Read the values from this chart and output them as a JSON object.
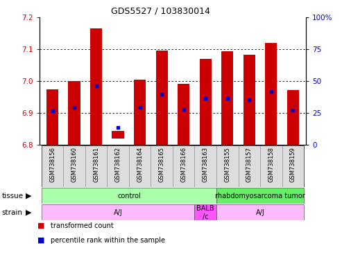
{
  "title": "GDS5527 / 103830014",
  "samples": [
    "GSM738156",
    "GSM738160",
    "GSM738161",
    "GSM738162",
    "GSM738164",
    "GSM738165",
    "GSM738166",
    "GSM738163",
    "GSM738155",
    "GSM738157",
    "GSM738158",
    "GSM738159"
  ],
  "bar_bottom": [
    6.8,
    6.8,
    6.8,
    6.82,
    6.8,
    6.8,
    6.8,
    6.8,
    6.8,
    6.8,
    6.8,
    6.8
  ],
  "bar_top": [
    6.975,
    7.0,
    7.165,
    6.845,
    7.005,
    7.095,
    6.992,
    7.07,
    7.093,
    7.082,
    7.12,
    6.972
  ],
  "blue_dot_y": [
    6.907,
    6.918,
    6.986,
    6.855,
    6.918,
    6.958,
    6.912,
    6.946,
    6.946,
    6.942,
    6.967,
    6.91
  ],
  "ylim_left": [
    6.8,
    7.2
  ],
  "ylim_right": [
    0,
    100
  ],
  "yticks_left": [
    6.8,
    6.9,
    7.0,
    7.1,
    7.2
  ],
  "yticks_right": [
    0,
    25,
    50,
    75,
    100
  ],
  "bar_color": "#cc0000",
  "dot_color": "#0000cc",
  "tissue_groups": [
    {
      "label": "control",
      "start": 0,
      "end": 8,
      "color": "#aaffaa"
    },
    {
      "label": "rhabdomyosarcoma tumor",
      "start": 8,
      "end": 12,
      "color": "#66ee66"
    }
  ],
  "strain_groups": [
    {
      "label": "A/J",
      "start": 0,
      "end": 7,
      "color": "#ffbbff"
    },
    {
      "label": "BALB\n/c",
      "start": 7,
      "end": 8,
      "color": "#ff55ff"
    },
    {
      "label": "A/J",
      "start": 8,
      "end": 12,
      "color": "#ffbbff"
    }
  ],
  "tissue_label": "tissue",
  "strain_label": "strain",
  "legend_items": [
    {
      "color": "#cc0000",
      "label": "transformed count"
    },
    {
      "color": "#0000cc",
      "label": "percentile rank within the sample"
    }
  ],
  "left_tick_color": "#cc0000",
  "right_tick_color": "#0000cc",
  "sample_cell_color": "#dddddd",
  "sample_cell_edge": "#888888"
}
